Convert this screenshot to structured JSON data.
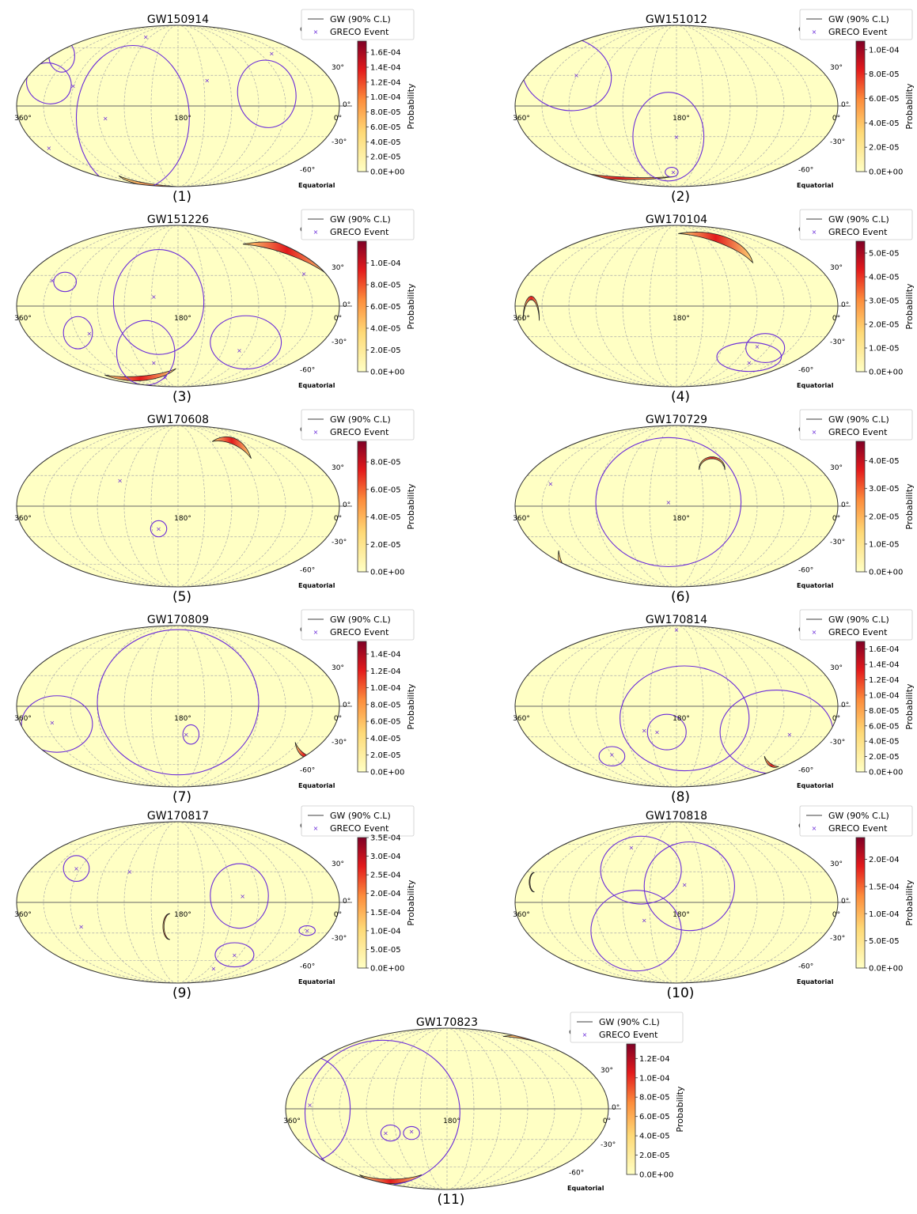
{
  "figure": {
    "legend": {
      "line_label": "GW (90% C.L)",
      "marker_label": "GRECO Event"
    },
    "colorbar_label": "Probability",
    "longitude_labels": {
      "left": "360°",
      "center": "180°",
      "right": "0°"
    },
    "latitude_labels": [
      "60°",
      "30°",
      "0°",
      "-30°",
      "-60°"
    ],
    "frame_label": "Equatorial",
    "colors": {
      "contour": "#6a2bd9",
      "marker": "#6a2bd9",
      "map_bg": "#ffffc4",
      "grid": "#aaaaaa"
    }
  },
  "chart_data": [
    {
      "type": "heatmap",
      "projection": "mollweide",
      "title": "GW150914",
      "panel_label": "(1)",
      "colorbar_ticks": [
        "0.0E+00",
        "2.0E-05",
        "4.0E-05",
        "6.0E-05",
        "8.0E-05",
        "1.0E-04",
        "1.2E-04",
        "1.4E-04",
        "1.6E-04"
      ],
      "colorbar_range": [
        0,
        0.000175
      ]
    },
    {
      "type": "heatmap",
      "projection": "mollweide",
      "title": "GW151012",
      "panel_label": "(2)",
      "colorbar_ticks": [
        "0.0E+00",
        "2.0E-05",
        "4.0E-05",
        "6.0E-05",
        "8.0E-05",
        "1.0E-04"
      ],
      "colorbar_range": [
        0,
        0.000107
      ]
    },
    {
      "type": "heatmap",
      "projection": "mollweide",
      "title": "GW151226",
      "panel_label": "(3)",
      "colorbar_ticks": [
        "0.0E+00",
        "2.0E-05",
        "4.0E-05",
        "6.0E-05",
        "8.0E-05",
        "1.0E-04"
      ],
      "colorbar_range": [
        0,
        0.00012
      ]
    },
    {
      "type": "heatmap",
      "projection": "mollweide",
      "title": "GW170104",
      "panel_label": "(4)",
      "colorbar_ticks": [
        "0.0E+00",
        "1.0E-05",
        "2.0E-05",
        "3.0E-05",
        "4.0E-05",
        "5.0E-05"
      ],
      "colorbar_range": [
        0,
        5.5e-05
      ]
    },
    {
      "type": "heatmap",
      "projection": "mollweide",
      "title": "GW170608",
      "panel_label": "(5)",
      "colorbar_ticks": [
        "0.0E+00",
        "2.0E-05",
        "4.0E-05",
        "6.0E-05",
        "8.0E-05"
      ],
      "colorbar_range": [
        0,
        9.5e-05
      ]
    },
    {
      "type": "heatmap",
      "projection": "mollweide",
      "title": "GW170729",
      "panel_label": "(6)",
      "colorbar_ticks": [
        "0.0E+00",
        "1.0E-05",
        "2.0E-05",
        "3.0E-05",
        "4.0E-05"
      ],
      "colorbar_range": [
        0,
        4.7e-05
      ]
    },
    {
      "type": "heatmap",
      "projection": "mollweide",
      "title": "GW170809",
      "panel_label": "(7)",
      "colorbar_ticks": [
        "0.0E+00",
        "2.0E-05",
        "4.0E-05",
        "6.0E-05",
        "8.0E-05",
        "1.0E-04",
        "1.2E-04",
        "1.4E-04"
      ],
      "colorbar_range": [
        0,
        0.000155
      ]
    },
    {
      "type": "heatmap",
      "projection": "mollweide",
      "title": "GW170814",
      "panel_label": "(8)",
      "colorbar_ticks": [
        "0.0E+00",
        "2.0E-05",
        "4.0E-05",
        "6.0E-05",
        "8.0E-05",
        "1.0E-04",
        "1.2E-04",
        "1.4E-04",
        "1.6E-04"
      ],
      "colorbar_range": [
        0,
        0.00017
      ]
    },
    {
      "type": "heatmap",
      "projection": "mollweide",
      "title": "GW170817",
      "panel_label": "(9)",
      "colorbar_ticks": [
        "0.0E+00",
        "5.0E-05",
        "1.0E-04",
        "1.5E-04",
        "2.0E-04",
        "2.5E-04",
        "3.0E-04",
        "3.5E-04"
      ],
      "colorbar_range": [
        0,
        0.00035
      ]
    },
    {
      "type": "heatmap",
      "projection": "mollweide",
      "title": "GW170818",
      "panel_label": "(10)",
      "colorbar_ticks": [
        "0.0E+00",
        "5.0E-05",
        "1.0E-04",
        "1.5E-04",
        "2.0E-04"
      ],
      "colorbar_range": [
        0,
        0.00024
      ]
    },
    {
      "type": "heatmap",
      "projection": "mollweide",
      "title": "GW170823",
      "panel_label": "(11)",
      "colorbar_ticks": [
        "0.0E+00",
        "2.0E-05",
        "4.0E-05",
        "6.0E-05",
        "8.0E-05",
        "1.0E-04",
        "1.2E-04"
      ],
      "colorbar_range": [
        0,
        0.000135
      ]
    }
  ]
}
